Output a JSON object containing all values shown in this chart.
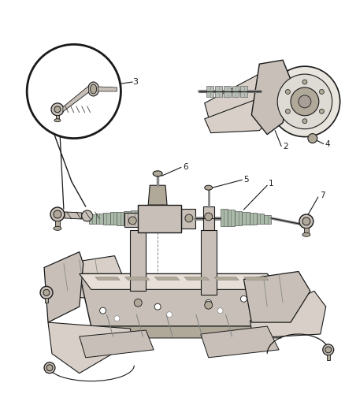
{
  "background_color": "#ffffff",
  "fig_width": 4.38,
  "fig_height": 5.33,
  "dpi": 100,
  "line_color": "#1a1a1a",
  "label_color": "#1a1a1a",
  "gray_fill": "#d8d0c8",
  "gray_dark": "#b0a898",
  "gray_light": "#e8e0d8",
  "gray_med": "#c8c0b8"
}
